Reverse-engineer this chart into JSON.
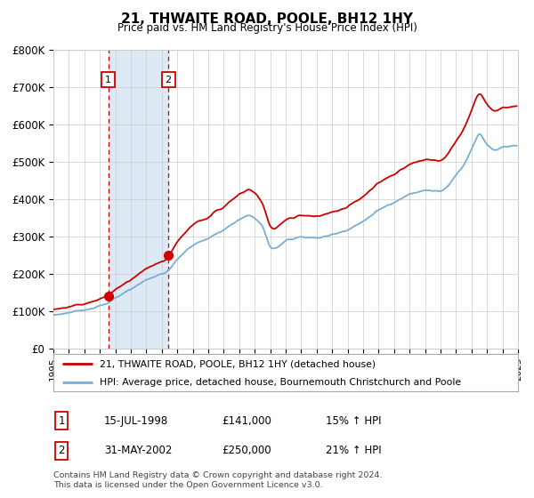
{
  "title": "21, THWAITE ROAD, POOLE, BH12 1HY",
  "subtitle": "Price paid vs. HM Land Registry's House Price Index (HPI)",
  "legend_line1": "21, THWAITE ROAD, POOLE, BH12 1HY (detached house)",
  "legend_line2": "HPI: Average price, detached house, Bournemouth Christchurch and Poole",
  "transaction1_date": "15-JUL-1998",
  "transaction1_price": 141000,
  "transaction1_hpi": "15% ↑ HPI",
  "transaction2_date": "31-MAY-2002",
  "transaction2_price": 250000,
  "transaction2_hpi": "21% ↑ HPI",
  "footer1": "Contains HM Land Registry data © Crown copyright and database right 2024.",
  "footer2": "This data is licensed under the Open Government Licence v3.0.",
  "ylim": [
    0,
    800000
  ],
  "yticks": [
    0,
    100000,
    200000,
    300000,
    400000,
    500000,
    600000,
    700000,
    800000
  ],
  "ytick_labels": [
    "£0",
    "£100K",
    "£200K",
    "£300K",
    "£400K",
    "£500K",
    "£600K",
    "£700K",
    "£800K"
  ],
  "hpi_color": "#7aadd4",
  "price_color": "#cc0000",
  "background_color": "#ffffff",
  "grid_color": "#cccccc",
  "highlight_color": "#ddeaf6",
  "transaction1_x": 1998.54,
  "transaction2_x": 2002.42,
  "annotation_color": "#cc0000",
  "annotation_border_color": "#cc0000"
}
